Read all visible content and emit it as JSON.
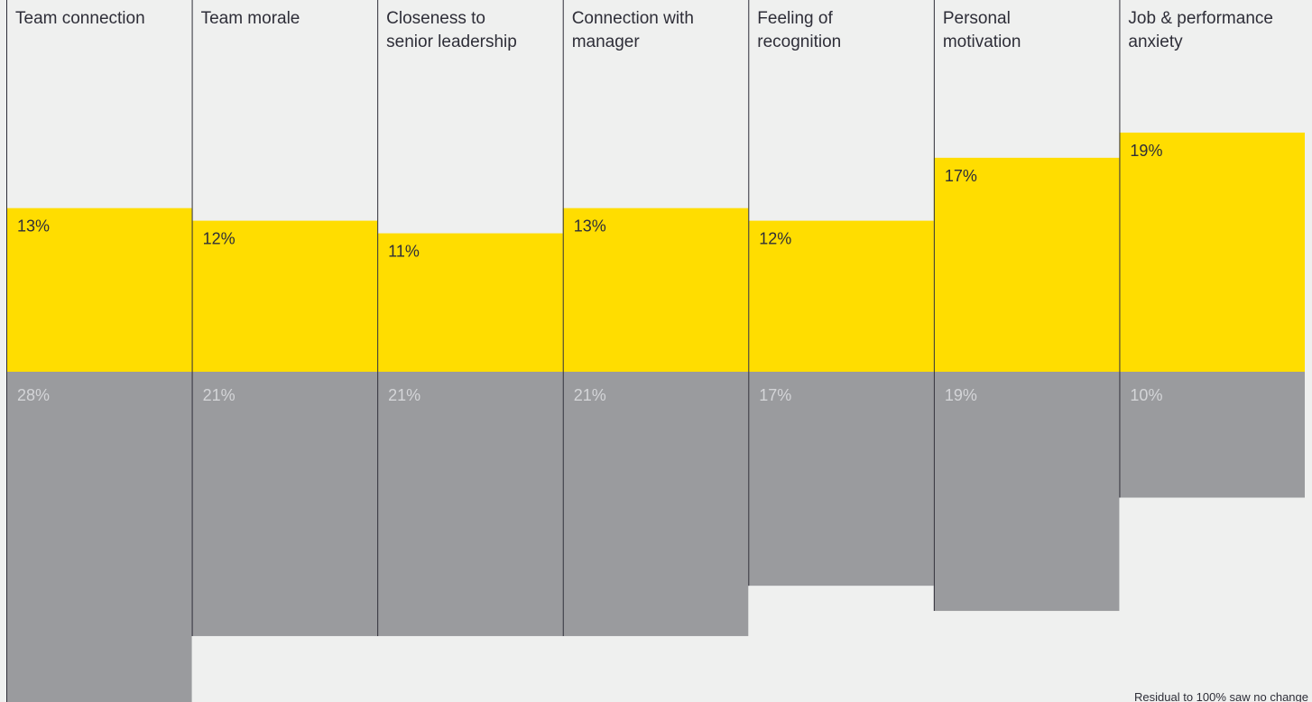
{
  "chart_data": {
    "type": "bar",
    "categories": [
      "Team connection",
      "Team morale",
      "Closeness to senior leadership",
      "Connection with manager",
      "Feeling of recognition",
      "Personal motivation",
      "Job & performance anxiety"
    ],
    "category_label_lines": [
      [
        "Team connection"
      ],
      [
        "Team morale"
      ],
      [
        "Closeness to",
        "senior leadership"
      ],
      [
        "Connection with",
        "manager"
      ],
      [
        "Feeling of",
        "recognition"
      ],
      [
        "Personal",
        "motivation"
      ],
      [
        "Job & performance",
        "anxiety"
      ]
    ],
    "series": [
      {
        "values": [
          13,
          12,
          11,
          13,
          12,
          17,
          19
        ],
        "labels": [
          "13%",
          "12%",
          "11%",
          "13%",
          "12%",
          "17%",
          "19%"
        ],
        "color": "#FFDD00"
      },
      {
        "values": [
          28,
          21,
          21,
          21,
          17,
          19,
          10
        ],
        "labels": [
          "28%",
          "21%",
          "21%",
          "21%",
          "17%",
          "19%",
          "10%"
        ],
        "color": "#9A9B9E"
      }
    ],
    "stacking": "diverging",
    "unit": "%",
    "footnote": "Residual to 100% saw no change",
    "colors": {
      "background": "#EFF0EF",
      "divider": "#2E2E38",
      "label_text": "#2E2E38",
      "negative_label_text": "#D4D5D8"
    },
    "grid": false
  }
}
